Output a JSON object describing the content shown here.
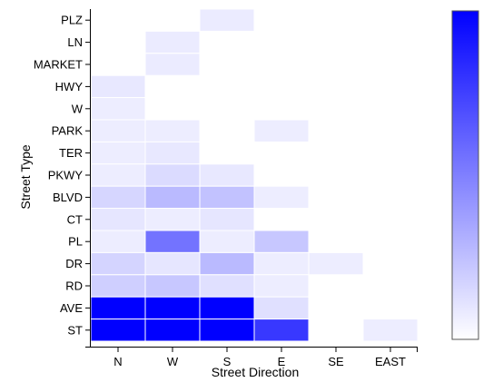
{
  "chart_data": {
    "type": "heatmap",
    "title": "",
    "xlabel": "Street Direction",
    "ylabel": "Street Type",
    "x_categories": [
      "N",
      "W",
      "S",
      "E",
      "SE",
      "EAST"
    ],
    "y_categories": [
      "PLZ",
      "LN",
      "MARKET",
      "HWY",
      "W",
      "PARK",
      "TER",
      "PKWY",
      "BLVD",
      "CT",
      "PL",
      "DR",
      "RD",
      "AVE",
      "ST"
    ],
    "color_low": "#ffffff",
    "color_high": "#0000ff",
    "value_range": [
      0,
      100
    ],
    "legend": "right",
    "cells": [
      {
        "y": "PLZ",
        "x": "S",
        "value": 8
      },
      {
        "y": "LN",
        "x": "W",
        "value": 8
      },
      {
        "y": "MARKET",
        "x": "W",
        "value": 8
      },
      {
        "y": "HWY",
        "x": "N",
        "value": 9
      },
      {
        "y": "W",
        "x": "N",
        "value": 7
      },
      {
        "y": "PARK",
        "x": "N",
        "value": 7
      },
      {
        "y": "PARK",
        "x": "W",
        "value": 7
      },
      {
        "y": "PARK",
        "x": "E",
        "value": 7
      },
      {
        "y": "TER",
        "x": "N",
        "value": 7
      },
      {
        "y": "TER",
        "x": "W",
        "value": 9
      },
      {
        "y": "PKWY",
        "x": "N",
        "value": 7
      },
      {
        "y": "PKWY",
        "x": "W",
        "value": 14
      },
      {
        "y": "PKWY",
        "x": "S",
        "value": 9
      },
      {
        "y": "BLVD",
        "x": "N",
        "value": 16
      },
      {
        "y": "BLVD",
        "x": "W",
        "value": 27
      },
      {
        "y": "BLVD",
        "x": "S",
        "value": 24
      },
      {
        "y": "BLVD",
        "x": "E",
        "value": 7
      },
      {
        "y": "CT",
        "x": "N",
        "value": 10
      },
      {
        "y": "CT",
        "x": "W",
        "value": 7
      },
      {
        "y": "CT",
        "x": "S",
        "value": 10
      },
      {
        "y": "PL",
        "x": "N",
        "value": 7
      },
      {
        "y": "PL",
        "x": "W",
        "value": 55
      },
      {
        "y": "PL",
        "x": "S",
        "value": 7
      },
      {
        "y": "PL",
        "x": "E",
        "value": 22
      },
      {
        "y": "DR",
        "x": "N",
        "value": 17
      },
      {
        "y": "DR",
        "x": "W",
        "value": 10
      },
      {
        "y": "DR",
        "x": "S",
        "value": 27
      },
      {
        "y": "DR",
        "x": "E",
        "value": 7
      },
      {
        "y": "DR",
        "x": "SE",
        "value": 7
      },
      {
        "y": "RD",
        "x": "N",
        "value": 19
      },
      {
        "y": "RD",
        "x": "W",
        "value": 22
      },
      {
        "y": "RD",
        "x": "S",
        "value": 12
      },
      {
        "y": "RD",
        "x": "E",
        "value": 7
      },
      {
        "y": "AVE",
        "x": "N",
        "value": 100
      },
      {
        "y": "AVE",
        "x": "W",
        "value": 100
      },
      {
        "y": "AVE",
        "x": "S",
        "value": 100
      },
      {
        "y": "AVE",
        "x": "E",
        "value": 12
      },
      {
        "y": "ST",
        "x": "N",
        "value": 100
      },
      {
        "y": "ST",
        "x": "W",
        "value": 100
      },
      {
        "y": "ST",
        "x": "S",
        "value": 100
      },
      {
        "y": "ST",
        "x": "E",
        "value": 78
      },
      {
        "y": "ST",
        "x": "EAST",
        "value": 7
      }
    ]
  }
}
